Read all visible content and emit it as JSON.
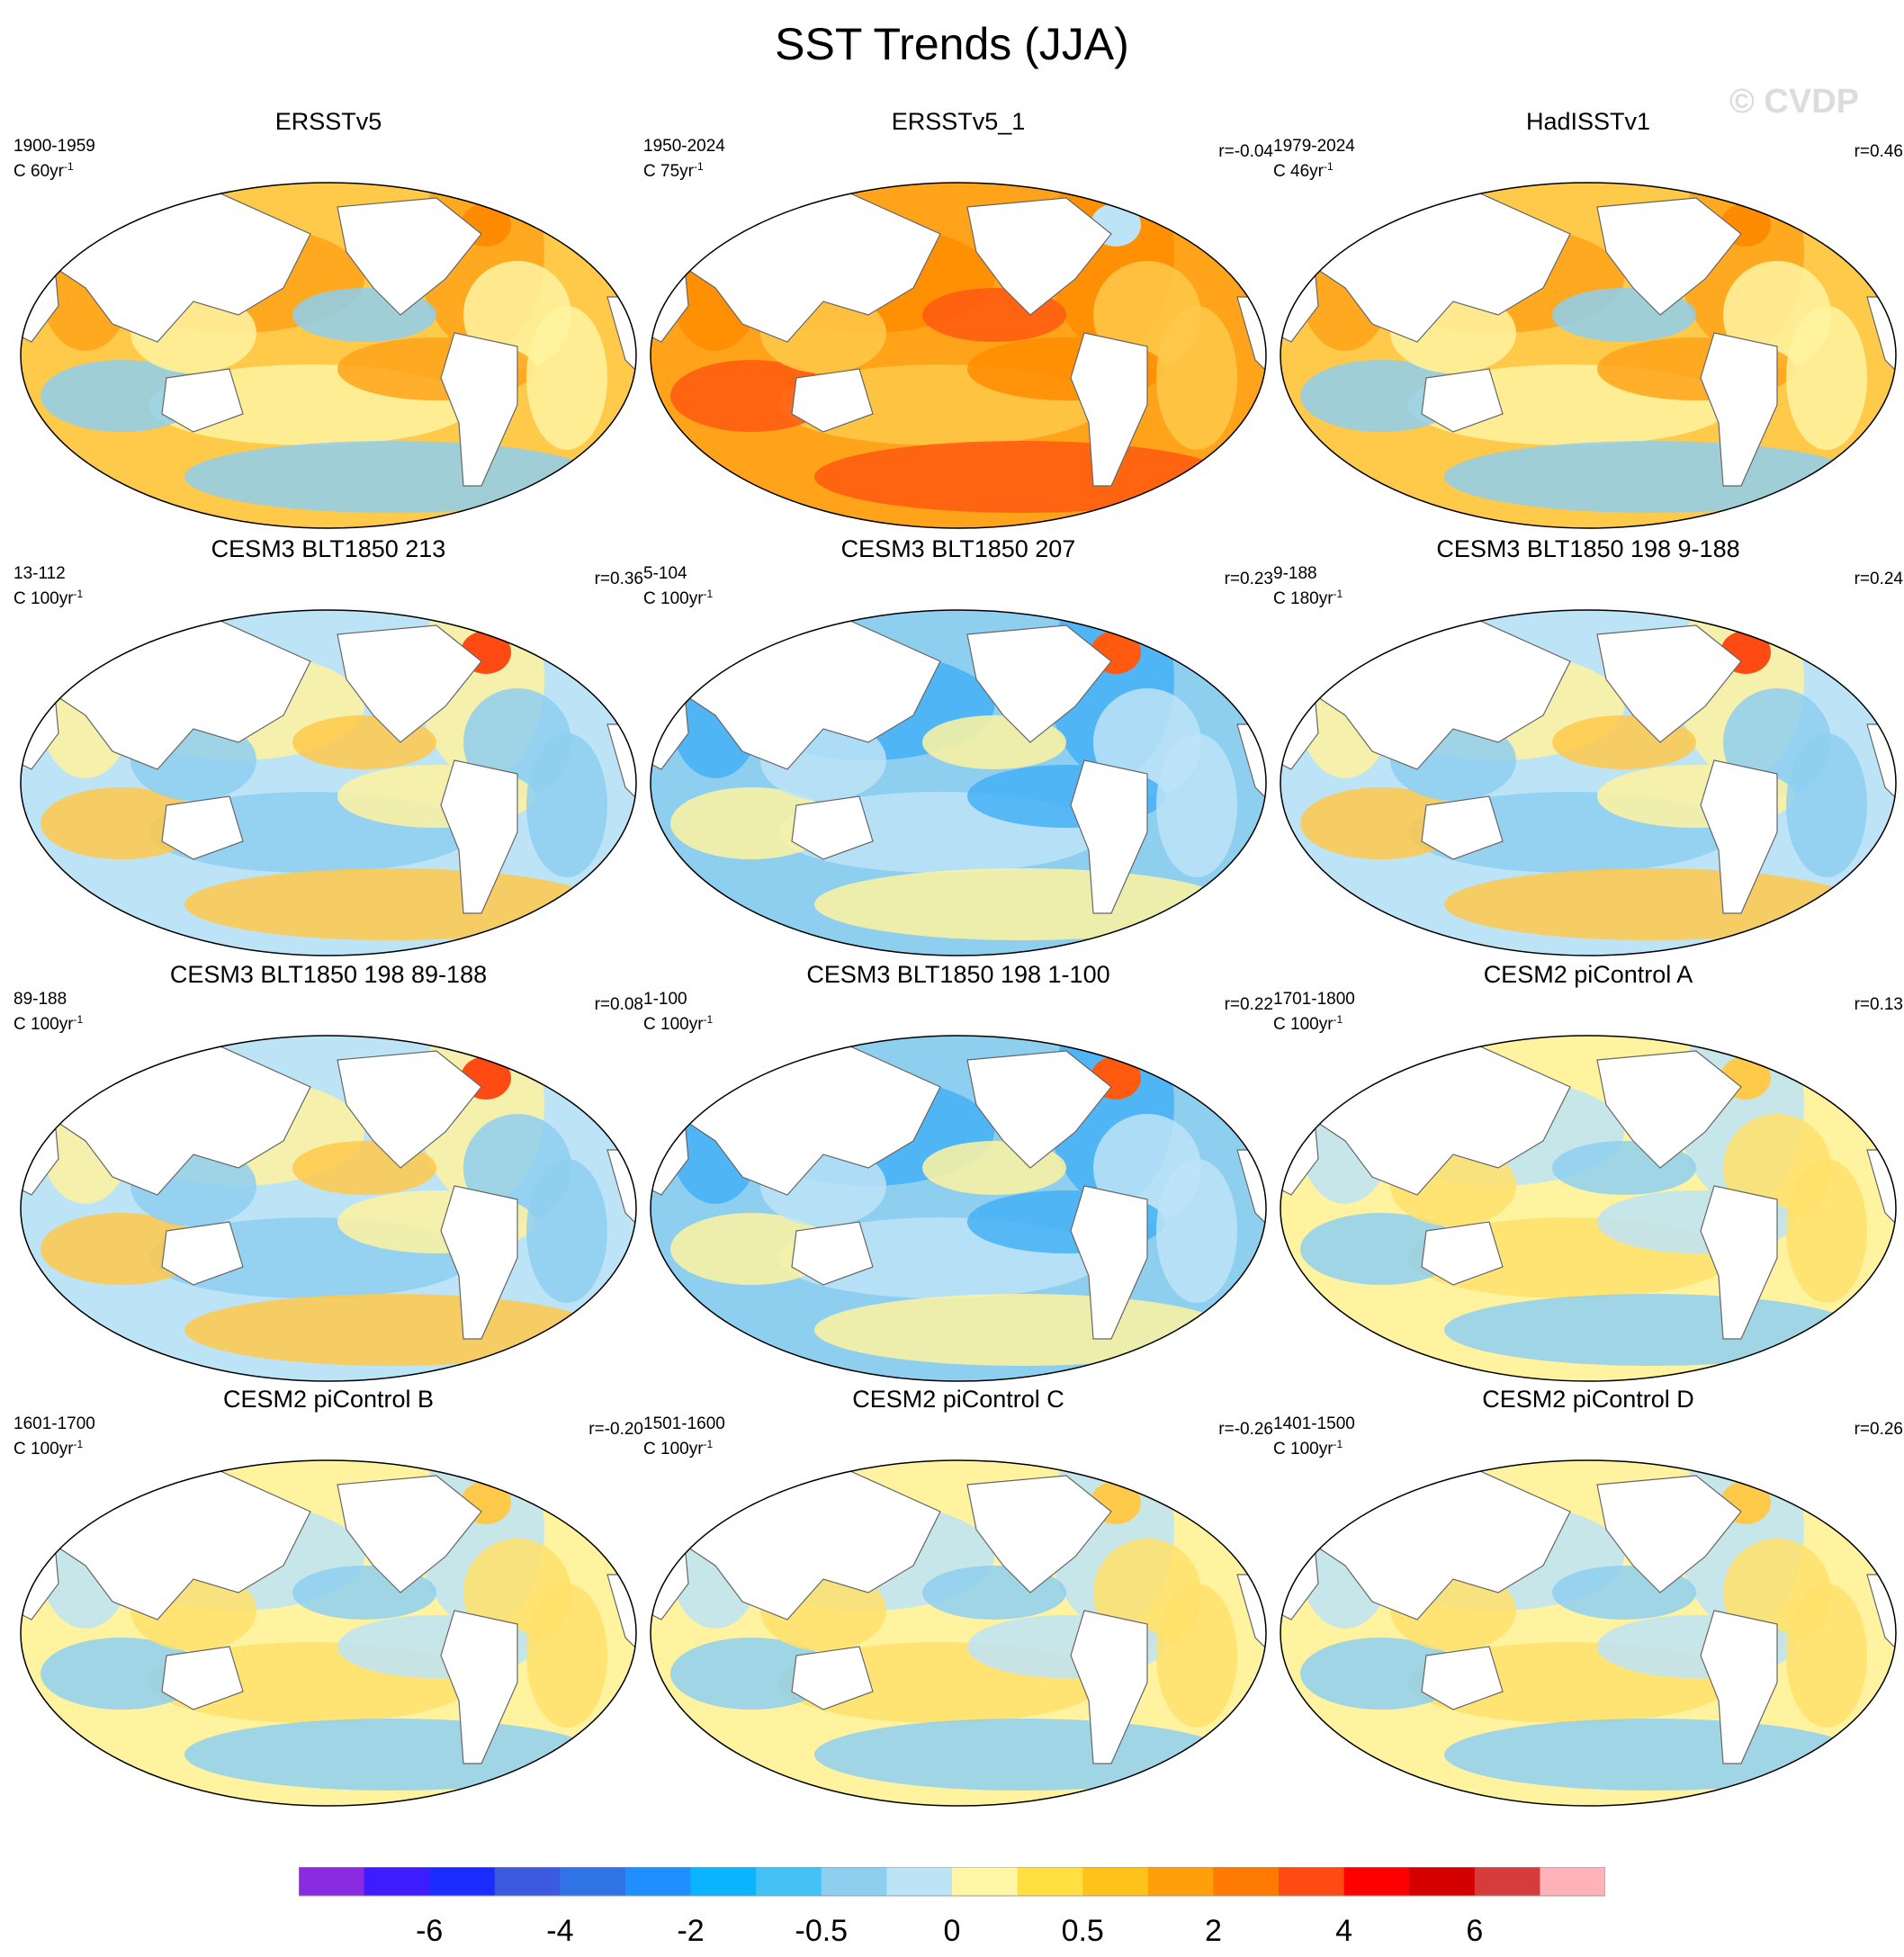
{
  "title": "SST Trends (JJA)",
  "watermark": "© CVDP",
  "units_text": "C",
  "panels": [
    {
      "title": "ERSSTv5",
      "period": "1900-1959",
      "rate": "60yr",
      "r": "",
      "scheme": "warm"
    },
    {
      "title": "ERSSTv5_1",
      "period": "1950-2024",
      "rate": "75yr",
      "r": "r=-0.04",
      "scheme": "hot"
    },
    {
      "title": "HadISSTv1",
      "period": "1979-2024",
      "rate": "46yr",
      "r": "r=0.46",
      "scheme": "warm"
    },
    {
      "title": "CESM3 BLT1850 213",
      "period": "13-112",
      "rate": "100yr",
      "r": "r=0.36",
      "scheme": "mixed"
    },
    {
      "title": "CESM3 BLT1850 207",
      "period": "5-104",
      "rate": "100yr",
      "r": "r=0.23",
      "scheme": "cool"
    },
    {
      "title": "CESM3 BLT1850 198 9-188",
      "period": "9-188",
      "rate": "180yr",
      "r": "r=0.24",
      "scheme": "mixed"
    },
    {
      "title": "CESM3 BLT1850 198 89-188",
      "period": "89-188",
      "rate": "100yr",
      "r": "r=0.08",
      "scheme": "mixed"
    },
    {
      "title": "CESM3 BLT1850 198 1-100",
      "period": "1-100",
      "rate": "100yr",
      "r": "r=0.22",
      "scheme": "cool"
    },
    {
      "title": "CESM2 piControl A",
      "period": "1701-1800",
      "rate": "100yr",
      "r": "r=0.13",
      "scheme": "pale"
    },
    {
      "title": "CESM2 piControl B",
      "period": "1601-1700",
      "rate": "100yr",
      "r": "r=-0.20",
      "scheme": "pale"
    },
    {
      "title": "CESM2 piControl C",
      "period": "1501-1600",
      "rate": "100yr",
      "r": "r=-0.26",
      "scheme": "pale"
    },
    {
      "title": "CESM2 piControl D",
      "period": "1401-1500",
      "rate": "100yr",
      "r": "r=0.26",
      "scheme": "pale"
    }
  ],
  "colorbar": {
    "colors": [
      "#8a2be2",
      "#3d1cff",
      "#1a2cff",
      "#3b5ae0",
      "#2f73e6",
      "#1f8fff",
      "#0ab4ff",
      "#45c2f5",
      "#8ecff0",
      "#bde3f7",
      "#fff7a6",
      "#ffe040",
      "#ffc21a",
      "#ff9f0a",
      "#ff7a00",
      "#ff4a14",
      "#ff0000",
      "#d40000",
      "#d73c3c",
      "#ffb3b8"
    ],
    "labels": [
      "-6",
      "-4",
      "-2",
      "-0.5",
      "0",
      "0.5",
      "2",
      "4",
      "6"
    ]
  }
}
